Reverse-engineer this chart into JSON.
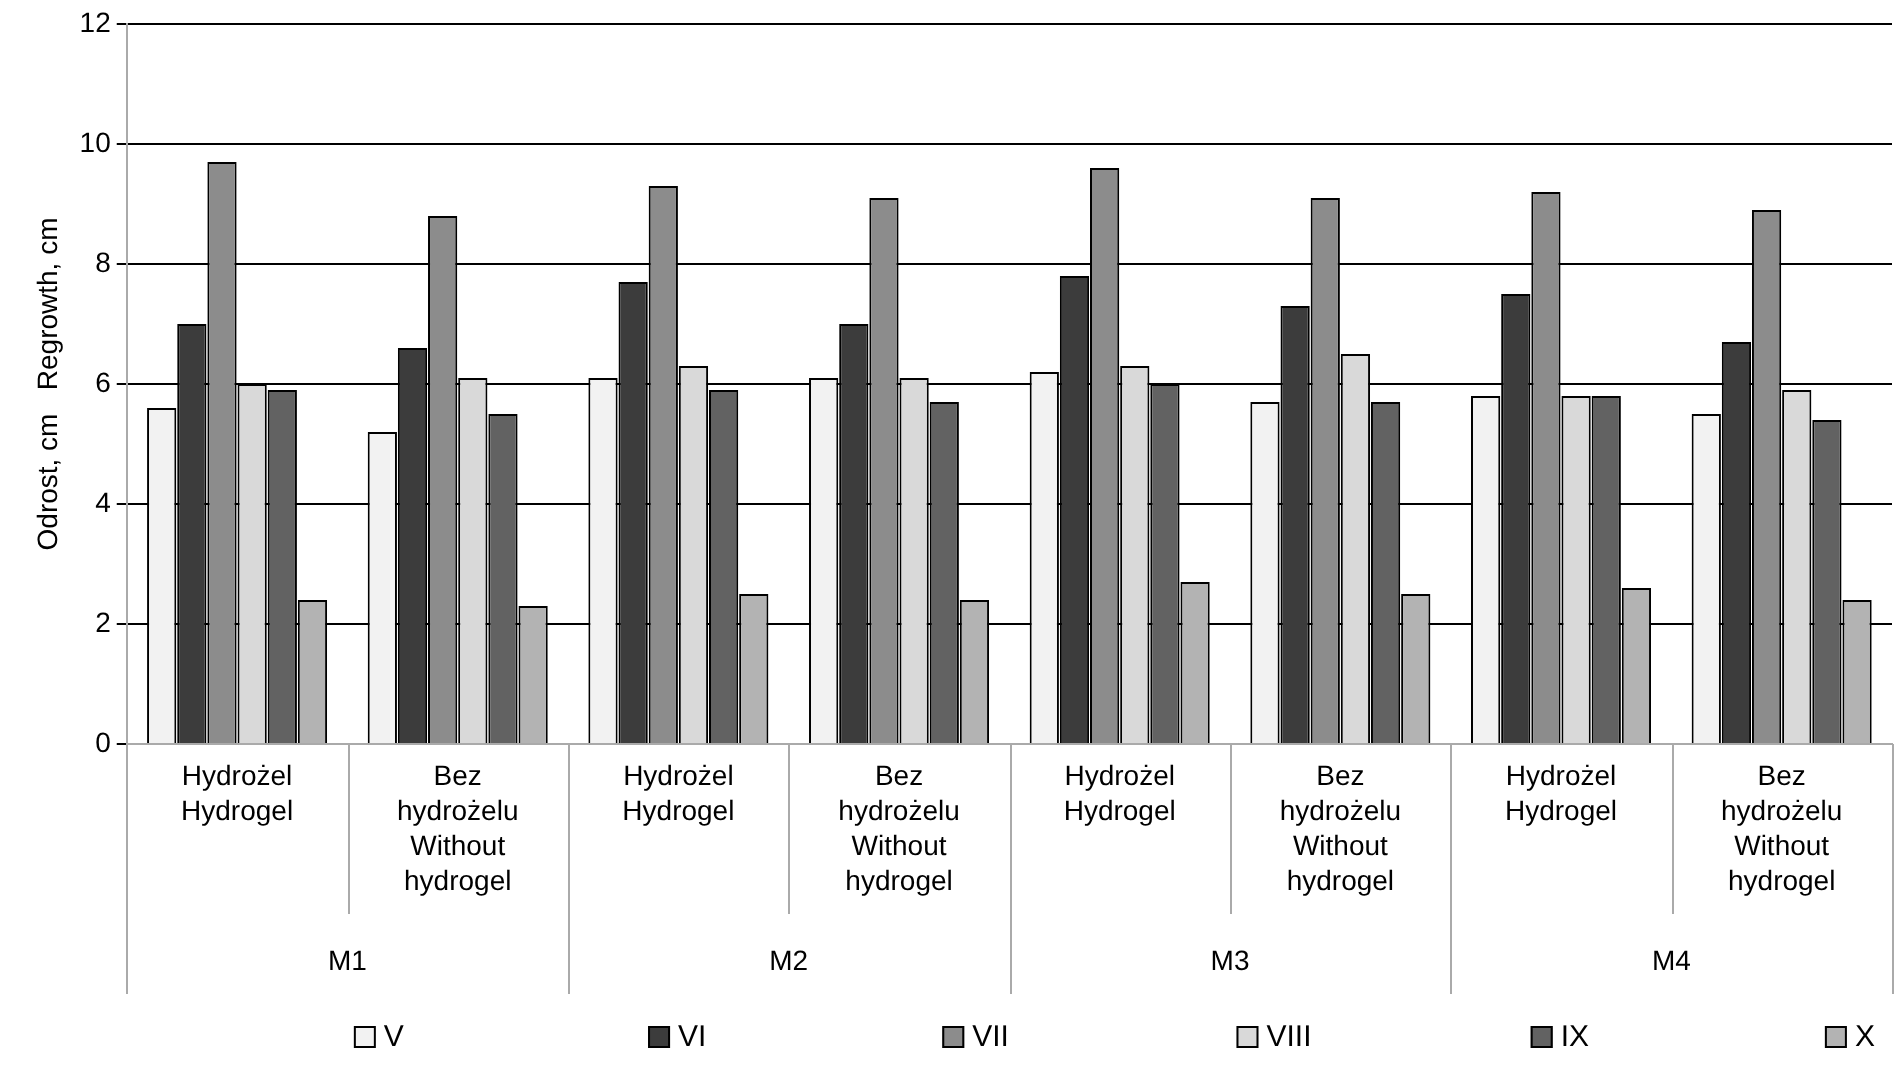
{
  "chart_data": {
    "type": "bar",
    "ylabel": "Odrost, cm   Regrowth, cm",
    "categories": [
      "Hydrożel\nHydrogel",
      "Bez\nhydrożelu\nWithout\nhydrogel",
      "Hydrożel\nHydrogel",
      "Bez\nhydrożelu\nWithout\nhydrogel",
      "Hydrożel\nHydrogel",
      "Bez\nhydrożelu\nWithout\nhydrogel",
      "Hydrożel\nHydrogel",
      "Bez\nhydrożelu\nWithout\nhydrogel"
    ],
    "annotations": [
      "M1",
      "M2",
      "M3",
      "M4"
    ],
    "series": [
      {
        "name": "V",
        "color": "#f2f2f2",
        "values": [
          5.6,
          5.2,
          6.1,
          6.1,
          6.2,
          5.7,
          5.8,
          5.5
        ]
      },
      {
        "name": "VI",
        "color": "#3c3c3c",
        "values": [
          7.0,
          6.6,
          7.7,
          7.0,
          7.8,
          7.3,
          7.5,
          6.7
        ]
      },
      {
        "name": "VII",
        "color": "#8c8c8c",
        "values": [
          9.7,
          8.8,
          9.3,
          9.1,
          9.6,
          9.1,
          9.2,
          8.9
        ]
      },
      {
        "name": "VIII",
        "color": "#d9d9d9",
        "values": [
          6.0,
          6.1,
          6.3,
          6.1,
          6.3,
          6.5,
          5.8,
          5.9
        ]
      },
      {
        "name": "IX",
        "color": "#626262",
        "values": [
          5.9,
          5.5,
          5.9,
          5.7,
          6.0,
          5.7,
          5.8,
          5.4
        ]
      },
      {
        "name": "X",
        "color": "#b3b3b3",
        "values": [
          2.4,
          2.3,
          2.5,
          2.4,
          2.7,
          2.5,
          2.6,
          2.4
        ]
      }
    ],
    "ylim": [
      0,
      12
    ],
    "yticks": [
      0,
      2,
      4,
      6,
      8,
      10,
      12
    ],
    "grid": "y",
    "legend": "bottom"
  }
}
